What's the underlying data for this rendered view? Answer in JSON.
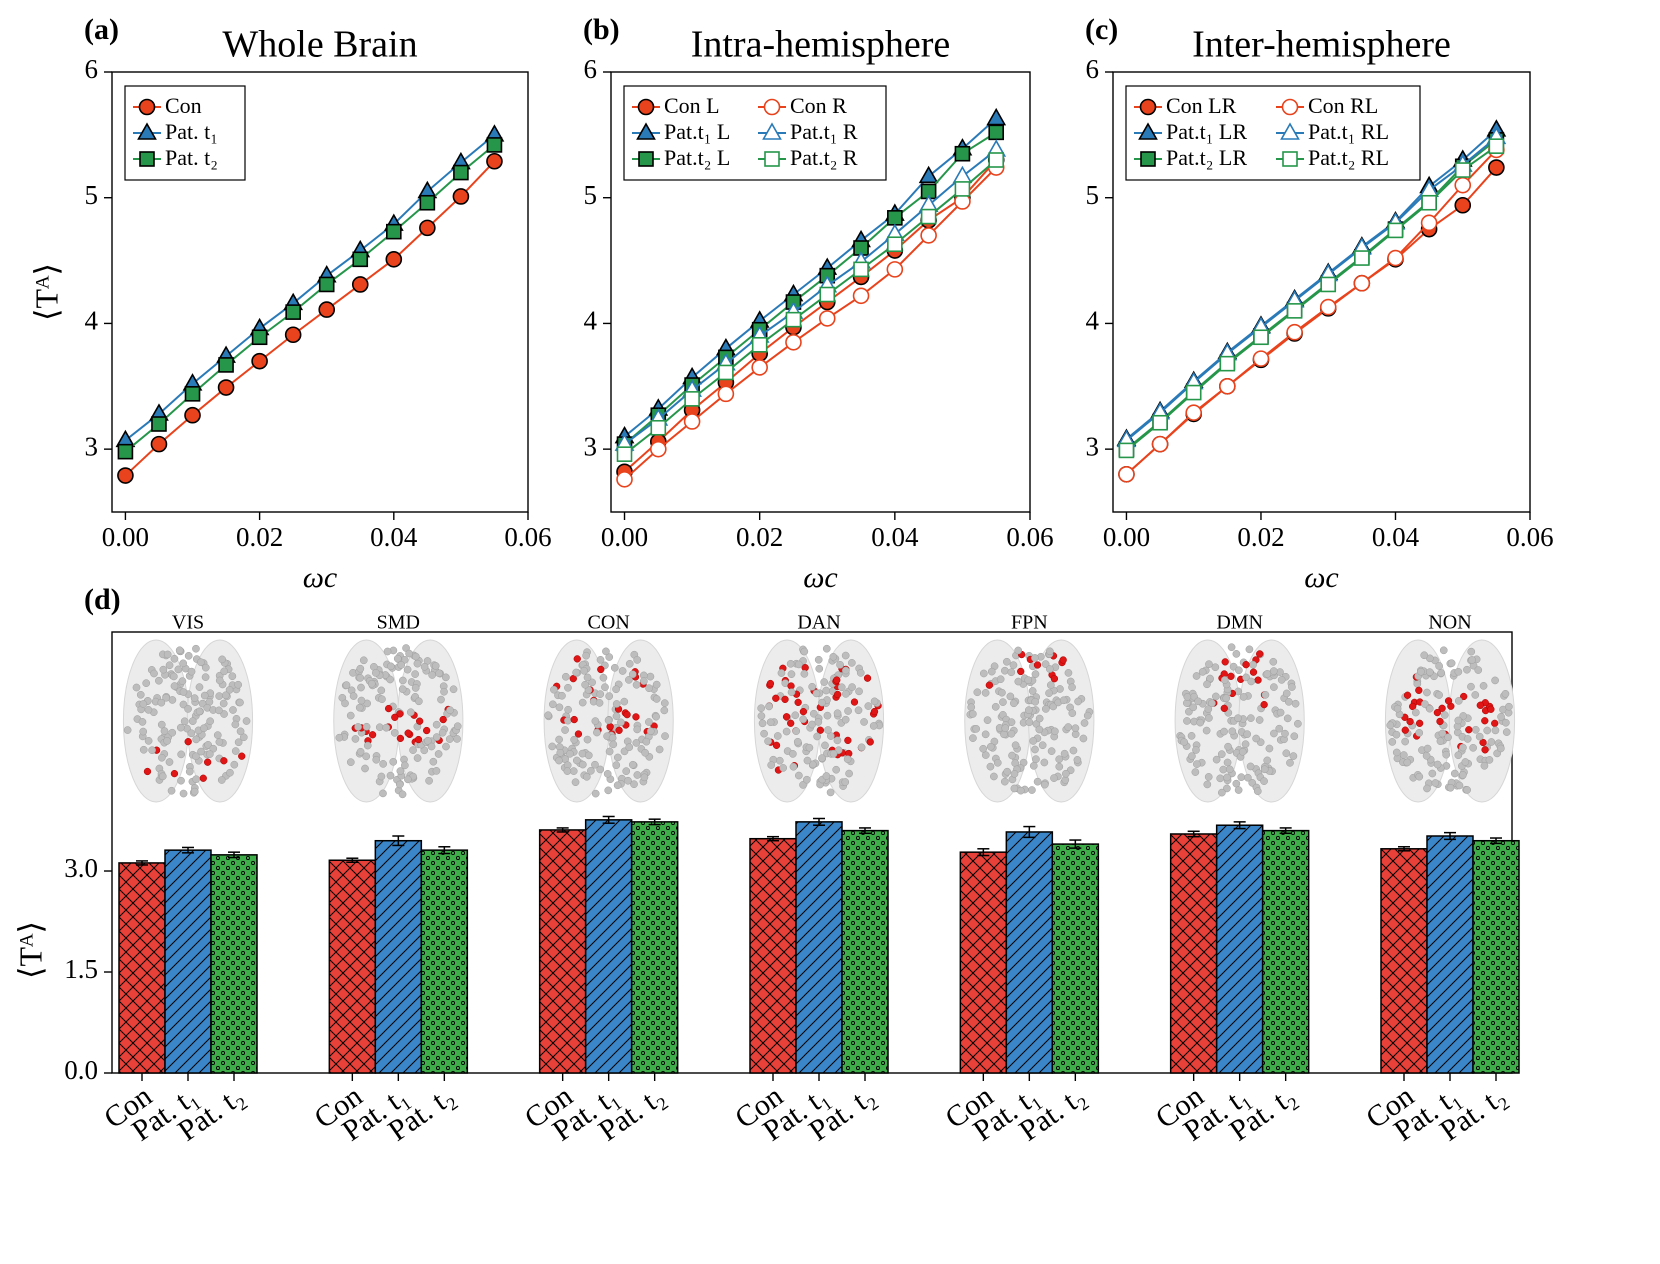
{
  "chart_data": [
    {
      "type": "line",
      "panel": "(a)",
      "title": "Whole Brain",
      "x_label": "ωc",
      "y_label": "⟨Tᴬ⟩",
      "x": [
        0,
        0.005,
        0.01,
        0.015,
        0.02,
        0.025,
        0.03,
        0.035,
        0.04,
        0.045,
        0.05,
        0.055
      ],
      "xlim": [
        -0.002,
        0.06
      ],
      "xticks": [
        {
          "value": 0,
          "label": "0.00"
        },
        {
          "value": 0.02,
          "label": "0.02"
        },
        {
          "value": 0.04,
          "label": "0.04"
        },
        {
          "value": 0.06,
          "label": "0.06"
        }
      ],
      "ylim": [
        2.5,
        6
      ],
      "yticks": [
        3,
        4,
        5,
        6
      ],
      "legend": "upper left",
      "legend_columns": 1,
      "series": [
        {
          "name": "Con",
          "color": "#e8431c",
          "marker": "o",
          "filled": true,
          "values": [
            2.79,
            3.04,
            3.27,
            3.49,
            3.7,
            3.91,
            4.11,
            4.31,
            4.51,
            4.76,
            5.01,
            5.29
          ]
        },
        {
          "name": "Pat. t₁",
          "color": "#2a7ab8",
          "marker": "^",
          "filled": true,
          "values": [
            3.07,
            3.28,
            3.52,
            3.74,
            3.96,
            4.16,
            4.38,
            4.58,
            4.79,
            5.05,
            5.28,
            5.5
          ]
        },
        {
          "name": "Pat. t₂",
          "color": "#25964a",
          "marker": "s",
          "filled": true,
          "values": [
            2.98,
            3.2,
            3.44,
            3.67,
            3.89,
            4.09,
            4.31,
            4.51,
            4.73,
            4.96,
            5.2,
            5.42
          ]
        }
      ]
    },
    {
      "type": "line",
      "panel": "(b)",
      "title": "Intra-hemisphere",
      "x_label": "ωc",
      "y_label": "",
      "x": [
        0,
        0.005,
        0.01,
        0.015,
        0.02,
        0.025,
        0.03,
        0.035,
        0.04,
        0.045,
        0.05,
        0.055
      ],
      "xlim": [
        -0.002,
        0.06
      ],
      "xticks": [
        {
          "value": 0,
          "label": "0.00"
        },
        {
          "value": 0.02,
          "label": "0.02"
        },
        {
          "value": 0.04,
          "label": "0.04"
        },
        {
          "value": 0.06,
          "label": "0.06"
        }
      ],
      "ylim": [
        2.5,
        6
      ],
      "yticks": [
        3,
        4,
        5,
        6
      ],
      "legend": "upper left",
      "legend_columns": 2,
      "series": [
        {
          "name": "Con L",
          "color": "#e8431c",
          "marker": "o",
          "filled": true,
          "values": [
            2.82,
            3.06,
            3.31,
            3.53,
            3.76,
            3.97,
            4.17,
            4.37,
            4.58,
            4.82,
            5.0,
            5.3
          ]
        },
        {
          "name": "Pat.t₁ L",
          "color": "#2a7ab8",
          "marker": "^",
          "filled": true,
          "values": [
            3.1,
            3.32,
            3.57,
            3.8,
            4.02,
            4.23,
            4.44,
            4.66,
            4.87,
            5.17,
            5.39,
            5.63
          ]
        },
        {
          "name": "Pat.t₂ L",
          "color": "#25964a",
          "marker": "s",
          "filled": true,
          "values": [
            3.04,
            3.27,
            3.51,
            3.73,
            3.95,
            4.17,
            4.38,
            4.6,
            4.84,
            5.05,
            5.35,
            5.52
          ]
        },
        {
          "name": "Con R",
          "color": "#e8431c",
          "marker": "o",
          "filled": false,
          "values": [
            2.76,
            3.0,
            3.22,
            3.44,
            3.65,
            3.85,
            4.04,
            4.22,
            4.43,
            4.7,
            4.97,
            5.24
          ]
        },
        {
          "name": "Pat.t₁ R",
          "color": "#2a7ab8",
          "marker": "^",
          "filled": false,
          "values": [
            3.04,
            3.24,
            3.47,
            3.68,
            3.9,
            4.09,
            4.3,
            4.49,
            4.71,
            4.94,
            5.17,
            5.38
          ]
        },
        {
          "name": "Pat.t₂ R",
          "color": "#25964a",
          "marker": "s",
          "filled": false,
          "values": [
            2.96,
            3.17,
            3.4,
            3.61,
            3.83,
            4.03,
            4.23,
            4.43,
            4.63,
            4.85,
            5.07,
            5.3
          ]
        }
      ]
    },
    {
      "type": "line",
      "panel": "(c)",
      "title": "Inter-hemisphere",
      "x_label": "ωc",
      "y_label": "",
      "x": [
        0,
        0.005,
        0.01,
        0.015,
        0.02,
        0.025,
        0.03,
        0.035,
        0.04,
        0.045,
        0.05,
        0.055
      ],
      "xlim": [
        -0.002,
        0.06
      ],
      "xticks": [
        {
          "value": 0,
          "label": "0.00"
        },
        {
          "value": 0.02,
          "label": "0.02"
        },
        {
          "value": 0.04,
          "label": "0.04"
        },
        {
          "value": 0.06,
          "label": "0.06"
        }
      ],
      "ylim": [
        2.5,
        6
      ],
      "yticks": [
        3,
        4,
        5,
        6
      ],
      "legend": "upper left",
      "legend_columns": 2,
      "series": [
        {
          "name": "Con LR",
          "color": "#e8431c",
          "marker": "o",
          "filled": true,
          "values": [
            2.8,
            3.04,
            3.28,
            3.5,
            3.71,
            3.92,
            4.12,
            4.32,
            4.51,
            4.75,
            4.94,
            5.24
          ]
        },
        {
          "name": "Pat.t₁ LR",
          "color": "#2a7ab8",
          "marker": "^",
          "filled": true,
          "values": [
            3.08,
            3.3,
            3.54,
            3.77,
            3.98,
            4.19,
            4.4,
            4.61,
            4.81,
            5.09,
            5.3,
            5.54
          ]
        },
        {
          "name": "Pat.t₂ LR",
          "color": "#25964a",
          "marker": "s",
          "filled": true,
          "values": [
            3.0,
            3.22,
            3.46,
            3.69,
            3.9,
            4.11,
            4.32,
            4.53,
            4.75,
            4.97,
            5.25,
            5.46
          ]
        },
        {
          "name": "Con RL",
          "color": "#e8431c",
          "marker": "o",
          "filled": false,
          "values": [
            2.8,
            3.04,
            3.29,
            3.5,
            3.72,
            3.93,
            4.13,
            4.32,
            4.52,
            4.8,
            5.1,
            5.38
          ]
        },
        {
          "name": "Pat.t₁ RL",
          "color": "#2a7ab8",
          "marker": "^",
          "filled": false,
          "values": [
            3.07,
            3.29,
            3.53,
            3.76,
            3.97,
            4.18,
            4.39,
            4.6,
            4.8,
            5.06,
            5.26,
            5.48
          ]
        },
        {
          "name": "Pat.t₂ RL",
          "color": "#25964a",
          "marker": "s",
          "filled": false,
          "values": [
            2.99,
            3.21,
            3.45,
            3.68,
            3.89,
            4.1,
            4.31,
            4.52,
            4.74,
            4.96,
            5.22,
            5.41
          ]
        }
      ]
    },
    {
      "type": "bar",
      "panel": "(d)",
      "y_label": "⟨Tᴬ⟩",
      "categories": [
        "VIS",
        "SMD",
        "CON",
        "DAN",
        "FPN",
        "DMN",
        "NON"
      ],
      "ylim": [
        0,
        6.55
      ],
      "yticks": [
        {
          "value": 0,
          "label": "0.0"
        },
        {
          "value": 1.5,
          "label": "1.5"
        },
        {
          "value": 3,
          "label": "3.0"
        }
      ],
      "series": [
        {
          "name": "Con",
          "color": "#e8413a",
          "hatch": "x",
          "values": [
            3.12,
            3.16,
            3.61,
            3.48,
            3.28,
            3.55,
            3.33
          ],
          "errors": [
            0.03,
            0.03,
            0.03,
            0.03,
            0.05,
            0.04,
            0.03
          ]
        },
        {
          "name": "Pat. t₁",
          "color": "#3a86c8",
          "hatch": "/",
          "values": [
            3.31,
            3.45,
            3.76,
            3.73,
            3.58,
            3.68,
            3.52
          ],
          "errors": [
            0.04,
            0.07,
            0.05,
            0.05,
            0.08,
            0.05,
            0.05
          ]
        },
        {
          "name": "Pat. t₂",
          "color": "#3fae4a",
          "hatch": "o",
          "values": [
            3.24,
            3.31,
            3.73,
            3.6,
            3.4,
            3.6,
            3.45
          ],
          "errors": [
            0.04,
            0.05,
            0.04,
            0.04,
            0.06,
            0.04,
            0.04
          ]
        }
      ]
    }
  ]
}
